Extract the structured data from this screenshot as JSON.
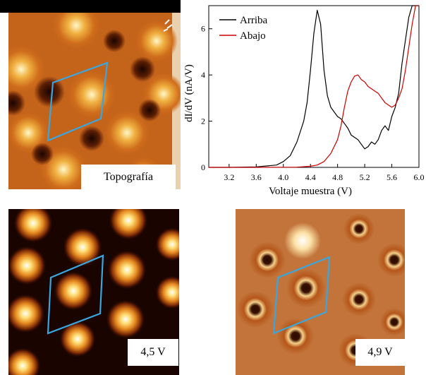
{
  "panels": {
    "topography": {
      "label": "Topografía"
    },
    "map_a": {
      "label": "4,5 V"
    },
    "map_b": {
      "label": "4,9 V"
    }
  },
  "colors": {
    "cell_outline": "#3aa6e0",
    "arriba": "#000000",
    "abajo": "#cc0000",
    "map_dark": "#1a0500",
    "map_bright": "#ffffff"
  },
  "chart_data": {
    "type": "line",
    "xlabel": "Voltaje muestra (V)",
    "ylabel": "dI/dV (nA/V)",
    "xlim": [
      2.9,
      6.0
    ],
    "ylim": [
      0,
      7
    ],
    "xticks": [
      "3.2",
      "3.6",
      "4.0",
      "4.4",
      "4.8",
      "5.2",
      "5.6",
      "6.0"
    ],
    "yticks": [
      "0",
      "2",
      "4",
      "6"
    ],
    "legend_position": "top-left",
    "series": [
      {
        "name": "Arriba",
        "color": "#000000",
        "x": [
          2.9,
          3.2,
          3.6,
          3.9,
          4.0,
          4.1,
          4.2,
          4.3,
          4.35,
          4.4,
          4.45,
          4.5,
          4.55,
          4.6,
          4.65,
          4.7,
          4.75,
          4.8,
          4.85,
          4.9,
          4.95,
          5.0,
          5.05,
          5.1,
          5.15,
          5.2,
          5.25,
          5.3,
          5.35,
          5.4,
          5.45,
          5.5,
          5.55,
          5.6,
          5.65,
          5.7,
          5.75,
          5.8,
          5.85,
          5.9,
          5.95,
          6.0
        ],
        "y": [
          0.0,
          0.0,
          0.02,
          0.1,
          0.25,
          0.5,
          1.1,
          2.0,
          2.8,
          4.2,
          5.8,
          6.8,
          6.2,
          4.2,
          3.1,
          2.6,
          2.4,
          2.2,
          2.1,
          1.9,
          1.7,
          1.4,
          1.3,
          1.2,
          1.0,
          0.8,
          0.9,
          1.1,
          1.0,
          1.2,
          1.6,
          1.8,
          1.6,
          2.2,
          2.6,
          3.2,
          4.5,
          5.5,
          6.5,
          7.0,
          7.0,
          7.0
        ]
      },
      {
        "name": "Abajo",
        "color": "#cc0000",
        "x": [
          2.9,
          3.6,
          4.2,
          4.4,
          4.5,
          4.6,
          4.7,
          4.8,
          4.85,
          4.9,
          4.95,
          5.0,
          5.05,
          5.1,
          5.15,
          5.2,
          5.25,
          5.3,
          5.35,
          5.4,
          5.45,
          5.5,
          5.55,
          5.6,
          5.65,
          5.7,
          5.75,
          5.8,
          5.85,
          5.9,
          5.95,
          6.0
        ],
        "y": [
          0.0,
          0.0,
          0.01,
          0.05,
          0.1,
          0.25,
          0.6,
          1.2,
          1.8,
          2.6,
          3.3,
          3.7,
          3.95,
          4.0,
          3.8,
          3.7,
          3.5,
          3.4,
          3.3,
          3.2,
          3.0,
          2.8,
          2.7,
          2.6,
          2.7,
          3.0,
          3.4,
          4.2,
          5.2,
          6.2,
          7.0,
          7.0
        ]
      }
    ]
  }
}
